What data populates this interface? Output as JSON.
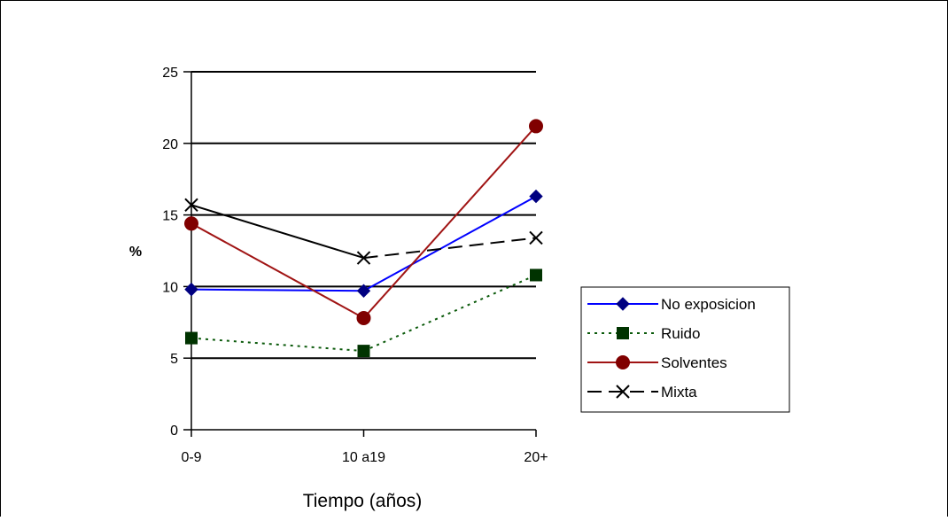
{
  "chart_data": {
    "type": "line",
    "title": "",
    "xlabel": "Tiempo (años)",
    "ylabel": "%",
    "categories": [
      "0-9",
      "10 a19",
      "20+"
    ],
    "ylim": [
      0,
      25
    ],
    "yticks": [
      "0",
      "5",
      "10",
      "15",
      "20",
      "25"
    ],
    "grid": "horizontal",
    "legend_position": "right",
    "series": [
      {
        "name": "No exposicion",
        "values": [
          9.8,
          9.7,
          16.3
        ],
        "color": "#0000ff",
        "marker": "diamond",
        "dash": "solid",
        "marker_color": "#000080"
      },
      {
        "name": "Ruido",
        "values": [
          6.4,
          5.5,
          10.8
        ],
        "color": "#0b5a0b",
        "marker": "square",
        "dash": "dotted",
        "marker_color": "#003300"
      },
      {
        "name": "Solventes",
        "values": [
          14.4,
          7.8,
          21.2
        ],
        "color": "#a01414",
        "marker": "circle",
        "dash": "solid",
        "marker_color": "#800000"
      },
      {
        "name": "Mixta",
        "values": [
          15.7,
          12.0,
          13.4
        ],
        "color": "#000000",
        "marker": "x",
        "dash": "mixed",
        "marker_color": "#000000"
      }
    ]
  }
}
